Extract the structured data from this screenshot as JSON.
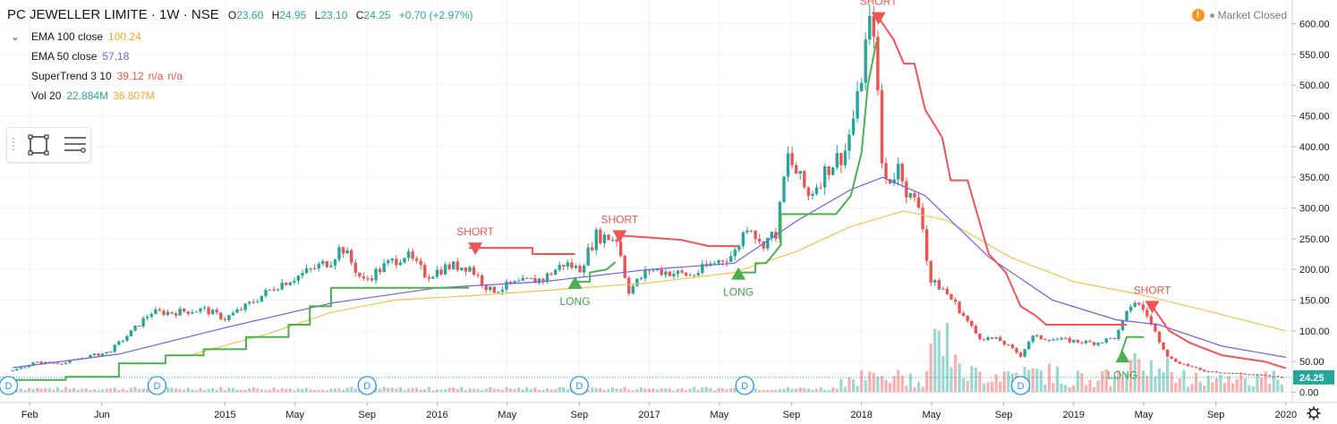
{
  "header": {
    "title": "PC JEWELLER LIMITE · 1W · NSE",
    "ohlc": [
      {
        "k": "O",
        "v": "23.60"
      },
      {
        "k": "H",
        "v": "24.95"
      },
      {
        "k": "L",
        "v": "23.10"
      },
      {
        "k": "C",
        "v": "24.25"
      }
    ],
    "change": "+0.70 (+2.97%)"
  },
  "legend": [
    {
      "name": "EMA 100 close",
      "values": [
        {
          "text": "100.24",
          "color": "#f5a623"
        }
      ]
    },
    {
      "name": "EMA 50 close",
      "values": [
        {
          "text": "57.18",
          "color": "#7b5ce0"
        }
      ]
    },
    {
      "name": "SuperTrend 3 10",
      "values": [
        {
          "text": "39.12",
          "color": "#ef5350"
        },
        {
          "text": "n/a",
          "color": "#ef5350"
        },
        {
          "text": "n/a",
          "color": "#ef5350"
        }
      ]
    },
    {
      "name": "Vol 20",
      "values": [
        {
          "text": "22.884M",
          "color": "#26a69a"
        },
        {
          "text": "36.807M",
          "color": "#f5a623"
        }
      ]
    }
  ],
  "status": {
    "label": "Market Closed"
  },
  "colors": {
    "up": "#26a69a",
    "down": "#ef5350",
    "ema100": "#f5c04a",
    "ema50": "#7b5ce0",
    "st_up": "#4caf50",
    "st_down": "#f05454",
    "grid": "#f0f3fa"
  },
  "chart_data": {
    "type": "candlestick",
    "ylim": [
      -15,
      625
    ],
    "y_ticks": [
      0,
      50,
      100,
      150,
      200,
      250,
      300,
      350,
      400,
      450,
      500,
      550,
      600
    ],
    "y_tick_labels": [
      "0.00",
      "50.00",
      "100.00",
      "150.00",
      "200.00",
      "250.00",
      "300.00",
      "350.00",
      "400.00",
      "450.00",
      "500.00",
      "550.00",
      "600.00"
    ],
    "last_price": 24.25,
    "last_price_label": "24.25",
    "x_ticks": [
      {
        "label": "Feb",
        "t": 2014.08
      },
      {
        "label": "Jun",
        "t": 2014.42
      },
      {
        "label": "2015",
        "t": 2015.0
      },
      {
        "label": "May",
        "t": 2015.33
      },
      {
        "label": "Sep",
        "t": 2015.67
      },
      {
        "label": "2016",
        "t": 2016.0
      },
      {
        "label": "May",
        "t": 2016.33
      },
      {
        "label": "Sep",
        "t": 2016.67
      },
      {
        "label": "2017",
        "t": 2017.0
      },
      {
        "label": "May",
        "t": 2017.33
      },
      {
        "label": "Sep",
        "t": 2017.67
      },
      {
        "label": "2018",
        "t": 2018.0
      },
      {
        "label": "May",
        "t": 2018.33
      },
      {
        "label": "Sep",
        "t": 2018.67
      },
      {
        "label": "2019",
        "t": 2019.0
      },
      {
        "label": "May",
        "t": 2019.33
      },
      {
        "label": "Sep",
        "t": 2019.67
      },
      {
        "label": "2020",
        "t": 2020.0
      }
    ],
    "price_path": [
      [
        2014.0,
        35
      ],
      [
        2014.1,
        48
      ],
      [
        2014.25,
        48
      ],
      [
        2014.35,
        58
      ],
      [
        2014.45,
        65
      ],
      [
        2014.55,
        95
      ],
      [
        2014.65,
        130
      ],
      [
        2014.75,
        130
      ],
      [
        2014.9,
        135
      ],
      [
        2015.0,
        120
      ],
      [
        2015.1,
        140
      ],
      [
        2015.25,
        175
      ],
      [
        2015.35,
        190
      ],
      [
        2015.5,
        215
      ],
      [
        2015.55,
        238
      ],
      [
        2015.65,
        180
      ],
      [
        2015.75,
        205
      ],
      [
        2015.85,
        225
      ],
      [
        2015.95,
        190
      ],
      [
        2016.05,
        205
      ],
      [
        2016.15,
        205
      ],
      [
        2016.25,
        165
      ],
      [
        2016.35,
        175
      ],
      [
        2016.5,
        185
      ],
      [
        2016.6,
        210
      ],
      [
        2016.67,
        200
      ],
      [
        2016.75,
        255
      ],
      [
        2016.85,
        250
      ],
      [
        2016.9,
        165
      ],
      [
        2017.0,
        200
      ],
      [
        2017.1,
        195
      ],
      [
        2017.2,
        190
      ],
      [
        2017.3,
        210
      ],
      [
        2017.4,
        225
      ],
      [
        2017.47,
        280
      ],
      [
        2017.52,
        240
      ],
      [
        2017.6,
        260
      ],
      [
        2017.65,
        385
      ],
      [
        2017.75,
        320
      ],
      [
        2017.85,
        370
      ],
      [
        2017.92,
        390
      ],
      [
        2017.98,
        470
      ],
      [
        2018.03,
        590
      ],
      [
        2018.06,
        600
      ],
      [
        2018.09,
        380
      ],
      [
        2018.12,
        340
      ],
      [
        2018.18,
        370
      ],
      [
        2018.22,
        320
      ],
      [
        2018.28,
        300
      ],
      [
        2018.32,
        180
      ],
      [
        2018.38,
        170
      ],
      [
        2018.45,
        140
      ],
      [
        2018.55,
        90
      ],
      [
        2018.65,
        85
      ],
      [
        2018.75,
        60
      ],
      [
        2018.8,
        90
      ],
      [
        2018.95,
        85
      ],
      [
        2019.1,
        80
      ],
      [
        2019.2,
        90
      ],
      [
        2019.28,
        150
      ],
      [
        2019.34,
        130
      ],
      [
        2019.38,
        100
      ],
      [
        2019.45,
        55
      ],
      [
        2019.6,
        35
      ],
      [
        2019.8,
        30
      ],
      [
        2020.0,
        24
      ]
    ],
    "ema100": [
      [
        2014.85,
        62
      ],
      [
        2015.2,
        95
      ],
      [
        2015.5,
        130
      ],
      [
        2015.8,
        150
      ],
      [
        2016.2,
        158
      ],
      [
        2016.6,
        168
      ],
      [
        2017.0,
        178
      ],
      [
        2017.4,
        195
      ],
      [
        2017.7,
        230
      ],
      [
        2017.95,
        270
      ],
      [
        2018.2,
        295
      ],
      [
        2018.4,
        280
      ],
      [
        2018.7,
        220
      ],
      [
        2019.0,
        180
      ],
      [
        2019.3,
        160
      ],
      [
        2019.6,
        135
      ],
      [
        2020.0,
        100
      ]
    ],
    "ema50": [
      [
        2014.0,
        40
      ],
      [
        2014.5,
        62
      ],
      [
        2015.0,
        105
      ],
      [
        2015.5,
        145
      ],
      [
        2016.0,
        170
      ],
      [
        2016.5,
        180
      ],
      [
        2017.0,
        200
      ],
      [
        2017.4,
        210
      ],
      [
        2017.7,
        280
      ],
      [
        2017.95,
        330
      ],
      [
        2018.1,
        350
      ],
      [
        2018.3,
        320
      ],
      [
        2018.6,
        220
      ],
      [
        2018.9,
        150
      ],
      [
        2019.2,
        118
      ],
      [
        2019.4,
        110
      ],
      [
        2019.7,
        75
      ],
      [
        2020.0,
        57
      ]
    ],
    "supertrend": [
      {
        "trend": "up",
        "points": [
          [
            2014.0,
            20
          ],
          [
            2014.25,
            20
          ],
          [
            2014.25,
            25
          ],
          [
            2014.5,
            25
          ],
          [
            2014.5,
            47
          ],
          [
            2014.72,
            47
          ],
          [
            2014.72,
            60
          ],
          [
            2014.9,
            60
          ],
          [
            2014.9,
            70
          ],
          [
            2015.1,
            70
          ],
          [
            2015.1,
            90
          ],
          [
            2015.3,
            90
          ],
          [
            2015.3,
            110
          ],
          [
            2015.4,
            110
          ],
          [
            2015.4,
            140
          ],
          [
            2015.5,
            140
          ],
          [
            2015.5,
            170
          ],
          [
            2016.15,
            170
          ]
        ]
      },
      {
        "trend": "down",
        "points": [
          [
            2016.15,
            235
          ],
          [
            2016.45,
            235
          ],
          [
            2016.45,
            225
          ],
          [
            2016.65,
            225
          ]
        ]
      },
      {
        "trend": "up",
        "points": [
          [
            2016.65,
            180
          ],
          [
            2016.72,
            180
          ],
          [
            2016.72,
            195
          ],
          [
            2016.8,
            200
          ],
          [
            2016.84,
            212
          ]
        ]
      },
      {
        "trend": "down",
        "points": [
          [
            2016.86,
            255
          ],
          [
            2017.0,
            252
          ],
          [
            2017.15,
            248
          ],
          [
            2017.28,
            238
          ],
          [
            2017.42,
            238
          ]
        ]
      },
      {
        "trend": "up",
        "points": [
          [
            2017.42,
            195
          ],
          [
            2017.5,
            195
          ],
          [
            2017.5,
            210
          ],
          [
            2017.55,
            210
          ],
          [
            2017.62,
            240
          ],
          [
            2017.62,
            290
          ],
          [
            2017.88,
            290
          ],
          [
            2017.95,
            320
          ],
          [
            2018.0,
            390
          ],
          [
            2018.03,
            500
          ],
          [
            2018.07,
            570
          ]
        ]
      },
      {
        "trend": "down",
        "points": [
          [
            2018.08,
            610
          ],
          [
            2018.15,
            575
          ],
          [
            2018.2,
            535
          ],
          [
            2018.25,
            535
          ],
          [
            2018.3,
            460
          ],
          [
            2018.38,
            415
          ],
          [
            2018.42,
            345
          ],
          [
            2018.5,
            345
          ],
          [
            2018.6,
            225
          ],
          [
            2018.68,
            195
          ],
          [
            2018.75,
            140
          ],
          [
            2018.82,
            125
          ],
          [
            2018.87,
            110
          ],
          [
            2019.25,
            110
          ]
        ]
      },
      {
        "trend": "up",
        "points": [
          [
            2019.22,
            60
          ],
          [
            2019.25,
            90
          ],
          [
            2019.33,
            90
          ]
        ]
      },
      {
        "trend": "down",
        "points": [
          [
            2019.37,
            140
          ],
          [
            2019.45,
            100
          ],
          [
            2019.55,
            80
          ],
          [
            2019.7,
            60
          ],
          [
            2019.9,
            50
          ],
          [
            2020.0,
            39
          ]
        ]
      }
    ],
    "signals": [
      {
        "type": "short",
        "label": "SHORT",
        "t": 2016.18,
        "price": 235
      },
      {
        "type": "long",
        "label": "LONG",
        "t": 2016.65,
        "price": 180
      },
      {
        "type": "short",
        "label": "SHORT",
        "t": 2016.86,
        "price": 255
      },
      {
        "type": "long",
        "label": "LONG",
        "t": 2017.42,
        "price": 195
      },
      {
        "type": "short",
        "label": "SHORT",
        "t": 2018.08,
        "price": 610
      },
      {
        "type": "long",
        "label": "LONG",
        "t": 2019.23,
        "price": 60
      },
      {
        "type": "short",
        "label": "SHORT",
        "t": 2019.37,
        "price": 140
      }
    ],
    "volume_max": 160,
    "dividend_markers": [
      {
        "label": "D",
        "t": 2013.98
      },
      {
        "label": "D",
        "t": 2014.68
      },
      {
        "label": "D",
        "t": 2015.67
      },
      {
        "label": "D",
        "t": 2016.67
      },
      {
        "label": "D",
        "t": 2017.45
      },
      {
        "label": "D",
        "t": 2018.75
      }
    ]
  }
}
